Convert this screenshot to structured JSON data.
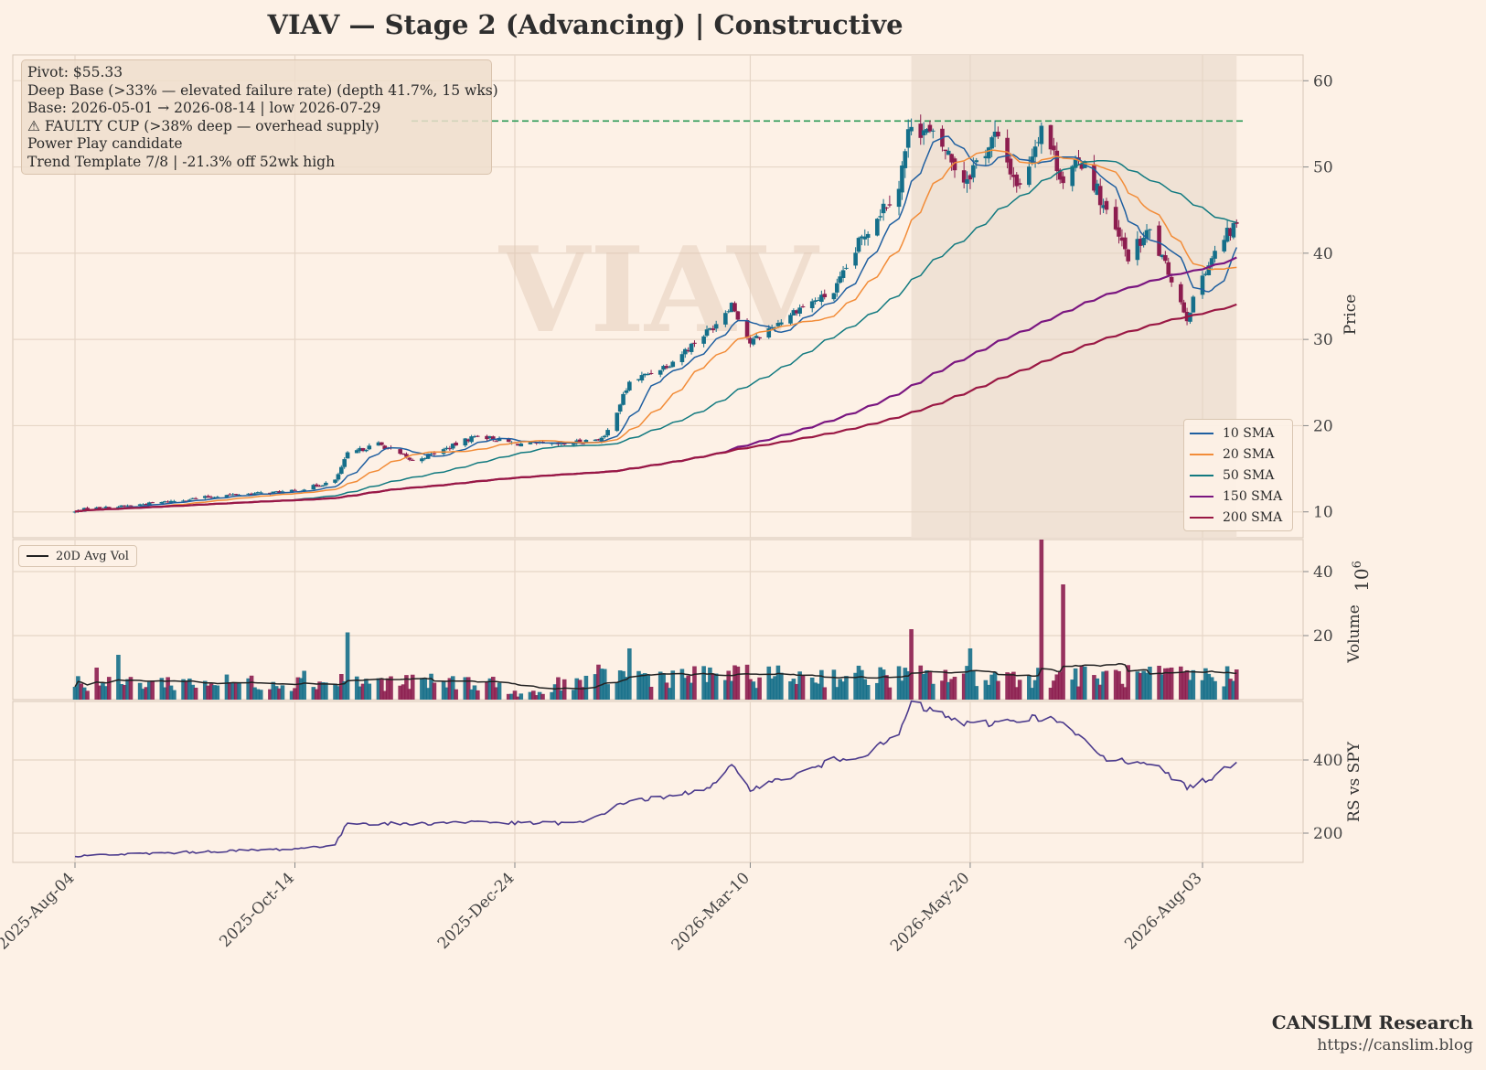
{
  "title": "VIAV  —  Stage 2 (Advancing)  |  Constructive",
  "watermark": "VIAV",
  "annotations": [
    "Pivot: $55.33",
    "Deep Base (>33% — elevated failure rate)  (depth 41.7%, 15 wks)",
    "Base: 2026-05-01 → 2026-08-14  |  low 2026-07-29",
    "⚠ FAULTY CUP (>38% deep — overhead supply)",
    "Power Play candidate",
    "Trend Template 7/8  |  -21.3% off 52wk high"
  ],
  "footer": {
    "brand": "CANSLIM Research",
    "url": "https://canslim.blog"
  },
  "colors": {
    "background": "#fdf1e6",
    "up_candle": "#156f8a",
    "down_candle": "#8c1d4f",
    "pivot_line": "#2a9a55",
    "base_shade": "#efe0d4",
    "rs_line": "#4b3a8c",
    "avg_vol": "#222222"
  },
  "chart_data": [
    {
      "type": "candlestick",
      "panel": "price",
      "ylabel": "Price",
      "ylim": [
        7,
        63
      ],
      "yticks": [
        10,
        20,
        30,
        40,
        50,
        60
      ],
      "x_ticks": [
        "2025-Aug-04",
        "2025-Oct-14",
        "2025-Dec-24",
        "2026-Mar-10",
        "2026-May-20",
        "2026-Aug-03"
      ],
      "grid": true,
      "legend_position": "lower-right",
      "pivot": 55.33,
      "base_start": "2026-05-01",
      "base_end": "2026-08-14",
      "close_anchors": [
        [
          "2025-08-04",
          10.0
        ],
        [
          "2025-08-08",
          10.4
        ],
        [
          "2025-08-15",
          10.5
        ],
        [
          "2025-09-01",
          11.1
        ],
        [
          "2025-09-20",
          11.9
        ],
        [
          "2025-10-14",
          12.4
        ],
        [
          "2025-10-27",
          13.6
        ],
        [
          "2025-10-31",
          16.7
        ],
        [
          "2025-11-10",
          17.9
        ],
        [
          "2025-11-21",
          15.9
        ],
        [
          "2025-12-01",
          17.2
        ],
        [
          "2025-12-12",
          18.9
        ],
        [
          "2025-12-24",
          17.9
        ],
        [
          "2026-01-08",
          17.8
        ],
        [
          "2026-01-22",
          18.6
        ],
        [
          "2026-01-30",
          25.0
        ],
        [
          "2026-02-12",
          27.2
        ],
        [
          "2026-02-26",
          31.5
        ],
        [
          "2026-03-04",
          34.2
        ],
        [
          "2026-03-10",
          29.6
        ],
        [
          "2026-03-25",
          33.5
        ],
        [
          "2026-04-06",
          35.5
        ],
        [
          "2026-04-17",
          43.0
        ],
        [
          "2026-04-27",
          48.0
        ],
        [
          "2026-05-01",
          55.5
        ],
        [
          "2026-05-12",
          52.0
        ],
        [
          "2026-05-18",
          48.5
        ],
        [
          "2026-05-28",
          53.5
        ],
        [
          "2026-06-05",
          47.5
        ],
        [
          "2026-06-12",
          55.0
        ],
        [
          "2026-06-19",
          48.5
        ],
        [
          "2026-06-26",
          51.0
        ],
        [
          "2026-07-03",
          44.5
        ],
        [
          "2026-07-10",
          39.5
        ],
        [
          "2026-07-17",
          42.5
        ],
        [
          "2026-07-24",
          37.0
        ],
        [
          "2026-07-29",
          32.5
        ],
        [
          "2026-08-03",
          37.5
        ],
        [
          "2026-08-07",
          40.0
        ],
        [
          "2026-08-14",
          43.5
        ]
      ],
      "series": [
        {
          "name": "10 SMA",
          "color": "#1f5fa0",
          "period": 10
        },
        {
          "name": "20 SMA",
          "color": "#f28c38",
          "period": 20
        },
        {
          "name": "50 SMA",
          "color": "#127a80",
          "period": 50
        },
        {
          "name": "150 SMA",
          "color": "#7a1680",
          "period": 150
        },
        {
          "name": "200 SMA",
          "color": "#9a1844",
          "period": 200
        }
      ]
    },
    {
      "type": "bar",
      "panel": "volume",
      "ylabel": "Volume",
      "scale_exponent": "6",
      "ylim": [
        0,
        50
      ],
      "yticks": [
        20,
        40
      ],
      "avg_series_name": "20D Avg Vol",
      "base_level": 6,
      "spikes": [
        [
          "2025-08-11",
          10,
          "down"
        ],
        [
          "2025-08-18",
          14,
          "up"
        ],
        [
          "2025-10-17",
          9,
          "up"
        ],
        [
          "2025-10-29",
          8,
          "down"
        ],
        [
          "2025-10-31",
          21,
          "up"
        ],
        [
          "2026-01-30",
          16,
          "up"
        ],
        [
          "2026-02-28",
          17,
          "up"
        ],
        [
          "2026-03-03",
          9,
          "down"
        ],
        [
          "2026-05-01",
          22,
          "down"
        ],
        [
          "2026-05-20",
          16,
          "up"
        ],
        [
          "2026-06-12",
          50,
          "down"
        ],
        [
          "2026-06-19",
          36,
          "down"
        ]
      ]
    },
    {
      "type": "line",
      "panel": "rs",
      "ylabel": "RS vs SPY",
      "ylim": [
        120,
        560
      ],
      "yticks": [
        200,
        400
      ],
      "anchors": [
        [
          "2025-08-04",
          138
        ],
        [
          "2025-10-14",
          157
        ],
        [
          "2025-10-27",
          168
        ],
        [
          "2025-10-31",
          228
        ],
        [
          "2025-11-21",
          225
        ],
        [
          "2025-12-12",
          232
        ],
        [
          "2025-12-24",
          227
        ],
        [
          "2026-01-15",
          228
        ],
        [
          "2026-01-30",
          290
        ],
        [
          "2026-02-12",
          298
        ],
        [
          "2026-02-26",
          330
        ],
        [
          "2026-03-04",
          382
        ],
        [
          "2026-03-10",
          322
        ],
        [
          "2026-03-25",
          360
        ],
        [
          "2026-04-06",
          400
        ],
        [
          "2026-04-17",
          418
        ],
        [
          "2026-04-27",
          470
        ],
        [
          "2026-05-01",
          555
        ],
        [
          "2026-05-12",
          520
        ],
        [
          "2026-05-20",
          495
        ],
        [
          "2026-06-12",
          518
        ],
        [
          "2026-06-19",
          498
        ],
        [
          "2026-07-03",
          400
        ],
        [
          "2026-07-17",
          395
        ],
        [
          "2026-07-29",
          325
        ],
        [
          "2026-08-07",
          355
        ],
        [
          "2026-08-14",
          400
        ]
      ]
    }
  ]
}
